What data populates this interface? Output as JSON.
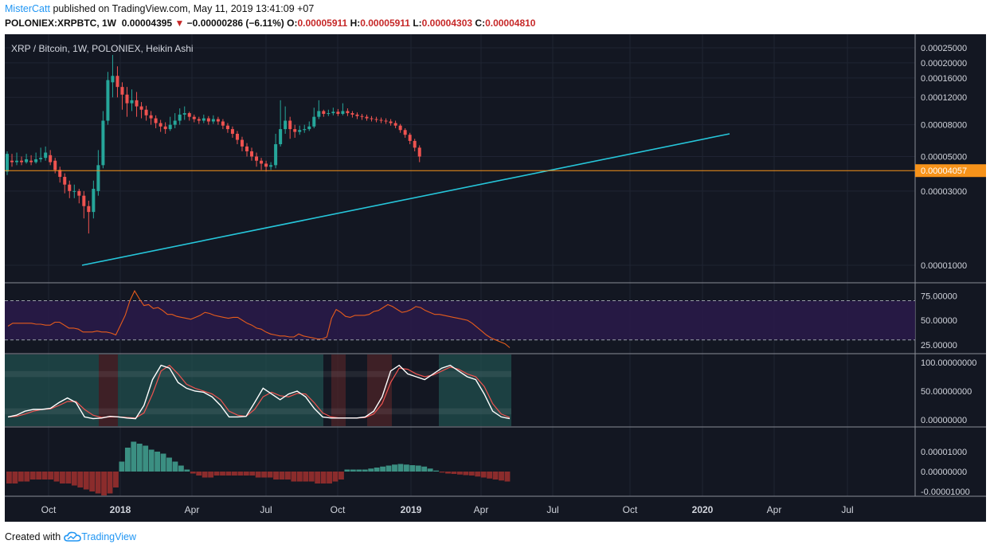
{
  "header": {
    "author": "MisterCatt",
    "published": "published on TradingView.com, May 11, 2019 13:41:09 +07",
    "symbol_line": "POLONIEX:XRPBTC, 1W",
    "last": "0.00004395",
    "change": "−0.00000286 (−6.11%)",
    "o_label": "O:",
    "o_val": "0.00005911",
    "h_label": "H:",
    "h_val": "0.00005911",
    "l_label": "L:",
    "l_val": "0.00004303",
    "c_label": "C:",
    "c_val": "0.00004810"
  },
  "footer": {
    "created_with": "Created with",
    "brand": "TradingView"
  },
  "colors": {
    "background": "#131722",
    "grid": "#1f2433",
    "up": "#26a69a",
    "down": "#ef5350",
    "trendline": "#26c6da",
    "support": "#f7931a",
    "rsi": "#e65c1c",
    "rsi_band": "#2a1a4a",
    "stoch_k": "#ffffff",
    "stoch_d": "#ef5350",
    "stoch_bg_low": "#1f4b4b",
    "stoch_bg_high": "#4a2328",
    "macd_up": "#3b8f82",
    "macd_down": "#8b2c2c"
  },
  "chart_data": {
    "type": "candlestick",
    "title": "XRP / Bitcoin, 1W, POLONIEX, Heikin Ashi",
    "x_ticks": [
      "Oct",
      "2018",
      "Apr",
      "Jul",
      "Oct",
      "2019",
      "Apr",
      "Jul",
      "Oct",
      "2020",
      "Apr",
      "Jul"
    ],
    "y_ticks": [
      "0.00025000",
      "0.00020000",
      "0.00016000",
      "0.00012000",
      "0.00008000",
      "0.00005000",
      "0.00003000",
      "0.00001000"
    ],
    "y_scale": "log",
    "price_line": "0.00004057",
    "candles": [
      [
        4e-05,
        5.2e-05,
        5.4e-05,
        3.8e-05
      ],
      [
        4.7e-05,
        4.6e-05,
        5.2e-05,
        4.3e-05
      ],
      [
        4.6e-05,
        4.7e-05,
        5.3e-05,
        4.4e-05
      ],
      [
        4.7e-05,
        4.6e-05,
        5e-05,
        4.4e-05
      ],
      [
        4.6e-05,
        4.8e-05,
        5.2e-05,
        4.5e-05
      ],
      [
        4.7e-05,
        4.6e-05,
        5.1e-05,
        4.4e-05
      ],
      [
        4.6e-05,
        4.8e-05,
        5.3e-05,
        4.5e-05
      ],
      [
        4.8e-05,
        4.9e-05,
        5.7e-05,
        4.6e-05
      ],
      [
        4.9e-05,
        5.3e-05,
        5.8e-05,
        4.7e-05
      ],
      [
        5.1e-05,
        4.6e-05,
        5.5e-05,
        4.4e-05
      ],
      [
        4.7e-05,
        4.1e-05,
        4.9e-05,
        3.9e-05
      ],
      [
        4.1e-05,
        3.7e-05,
        4.3e-05,
        3.4e-05
      ],
      [
        3.7e-05,
        3.3e-05,
        3.9e-05,
        2.9e-05
      ],
      [
        3.3e-05,
        3e-05,
        3.5e-05,
        2.7e-05
      ],
      [
        3e-05,
        3e-05,
        3.3e-05,
        2.7e-05
      ],
      [
        3e-05,
        2.8e-05,
        3.1e-05,
        2.5e-05
      ],
      [
        2.8e-05,
        2.4e-05,
        3e-05,
        2e-05
      ],
      [
        2.4e-05,
        2.2e-05,
        2.6e-05,
        1.6e-05
      ],
      [
        2.2e-05,
        3.1e-05,
        3.5e-05,
        2e-05
      ],
      [
        3e-05,
        4.4e-05,
        5.5e-05,
        2.8e-05
      ],
      [
        4.4e-05,
        8.5e-05,
        9.8e-05,
        4.2e-05
      ],
      [
        8.5e-05,
        0.000155,
        0.000175,
        8e-05
      ],
      [
        0.00015,
        0.000165,
        0.000225,
        0.00012
      ],
      [
        0.000165,
        0.00014,
        0.00019,
        0.00012
      ],
      [
        0.00014,
        0.000125,
        0.00015,
        0.0001
      ],
      [
        0.000125,
        0.00011,
        0.00014,
        9e-05
      ],
      [
        0.00011,
        0.000115,
        0.000135,
        9.8e-05
      ],
      [
        0.000115,
        0.000105,
        0.00013,
        9e-05
      ],
      [
        0.000105,
        0.0001,
        0.000112,
        8.8e-05
      ],
      [
        0.0001,
        9.2e-05,
        0.000106,
        8.5e-05
      ],
      [
        9.2e-05,
        8.8e-05,
        9.8e-05,
        8e-05
      ],
      [
        8.8e-05,
        8.2e-05,
        9.2e-05,
        7.6e-05
      ],
      [
        8.2e-05,
        7.8e-05,
        8.6e-05,
        7.2e-05
      ],
      [
        7.8e-05,
        7.5e-05,
        8.3e-05,
        7e-05
      ],
      [
        7.5e-05,
        8e-05,
        9e-05,
        7.3e-05
      ],
      [
        8e-05,
        8.5e-05,
        9.5e-05,
        7.6e-05
      ],
      [
        8.5e-05,
        9.3e-05,
        0.000102,
        8e-05
      ],
      [
        9.3e-05,
        9.5e-05,
        0.000105,
        8.6e-05
      ],
      [
        9.5e-05,
        9e-05,
        9.7e-05,
        8.5e-05
      ],
      [
        9e-05,
        8.7e-05,
        9.3e-05,
        8.3e-05
      ],
      [
        8.7e-05,
        8.5e-05,
        9e-05,
        8.1e-05
      ],
      [
        8.5e-05,
        8.8e-05,
        9.3e-05,
        8.2e-05
      ],
      [
        8.8e-05,
        8.4e-05,
        9.1e-05,
        8e-05
      ],
      [
        8.4e-05,
        8.7e-05,
        9.2e-05,
        8.1e-05
      ],
      [
        8.7e-05,
        8.4e-05,
        9e-05,
        8e-05
      ],
      [
        8.4e-05,
        7.9e-05,
        8.7e-05,
        7.5e-05
      ],
      [
        7.9e-05,
        7.5e-05,
        8.2e-05,
        7.1e-05
      ],
      [
        7.5e-05,
        7e-05,
        7.8e-05,
        6.6e-05
      ],
      [
        7e-05,
        6.4e-05,
        7.3e-05,
        6e-05
      ],
      [
        6.4e-05,
        5.8e-05,
        6.7e-05,
        5.4e-05
      ],
      [
        5.8e-05,
        5.4e-05,
        6.1e-05,
        5e-05
      ],
      [
        5.4e-05,
        5e-05,
        5.7e-05,
        4.7e-05
      ],
      [
        5e-05,
        4.7e-05,
        5.3e-05,
        4.3e-05
      ],
      [
        4.7e-05,
        4.5e-05,
        4.9e-05,
        4.1e-05
      ],
      [
        4.5e-05,
        4.3e-05,
        4.7e-05,
        4e-05
      ],
      [
        4.3e-05,
        4.4e-05,
        4.6e-05,
        4.1e-05
      ],
      [
        4.4e-05,
        6e-05,
        7e-05,
        4.2e-05
      ],
      [
        6e-05,
        7.5e-05,
        0.000115,
        5.8e-05
      ],
      [
        7.5e-05,
        8.5e-05,
        0.000105,
        7e-05
      ],
      [
        8.5e-05,
        7.5e-05,
        9e-05,
        6.5e-05
      ],
      [
        7.5e-05,
        7.2e-05,
        8e-05,
        6.6e-05
      ],
      [
        7.2e-05,
        7.4e-05,
        7.9e-05,
        6.9e-05
      ],
      [
        7.4e-05,
        7.5e-05,
        8e-05,
        7.1e-05
      ],
      [
        7.5e-05,
        7.8e-05,
        8.4e-05,
        7.3e-05
      ],
      [
        7.8e-05,
        9e-05,
        0.000103,
        7.6e-05
      ],
      [
        9e-05,
        9.8e-05,
        0.000115,
        8.7e-05
      ],
      [
        9.8e-05,
        9.4e-05,
        0.0001,
        9e-05
      ],
      [
        9.4e-05,
        9.5e-05,
        0.0001,
        9.1e-05
      ],
      [
        9.5e-05,
        9.7e-05,
        0.000103,
        9.2e-05
      ],
      [
        9.7e-05,
        9.4e-05,
        0.000101,
        9.1e-05
      ],
      [
        9.4e-05,
        9.8e-05,
        0.00011,
        9.2e-05
      ],
      [
        9.8e-05,
        9.5e-05,
        0.000102,
        9.1e-05
      ],
      [
        9.5e-05,
        9.3e-05,
        9.8e-05,
        8.9e-05
      ],
      [
        9.3e-05,
        9.1e-05,
        9.6e-05,
        8.7e-05
      ],
      [
        9.1e-05,
        9e-05,
        9.4e-05,
        8.6e-05
      ],
      [
        9e-05,
        8.8e-05,
        9.3e-05,
        8.5e-05
      ],
      [
        8.8e-05,
        8.7e-05,
        9.1e-05,
        8.4e-05
      ],
      [
        8.7e-05,
        8.6e-05,
        9e-05,
        8.3e-05
      ],
      [
        8.6e-05,
        8.5e-05,
        8.9e-05,
        8.2e-05
      ],
      [
        8.5e-05,
        8.4e-05,
        8.8e-05,
        8.1e-05
      ],
      [
        8.4e-05,
        8.2e-05,
        8.7e-05,
        7.9e-05
      ],
      [
        8.2e-05,
        7.9e-05,
        8.5e-05,
        7.6e-05
      ],
      [
        7.9e-05,
        7.4e-05,
        8.1e-05,
        7.1e-05
      ],
      [
        7.4e-05,
        6.9e-05,
        7.6e-05,
        6.6e-05
      ],
      [
        6.9e-05,
        6.3e-05,
        7.1e-05,
        6e-05
      ],
      [
        6.3e-05,
        5.7e-05,
        6.5e-05,
        5.4e-05
      ],
      [
        5.7e-05,
        5e-05,
        5.9e-05,
        4.6e-05
      ]
    ],
    "rsi": {
      "ticks": [
        "75.00000",
        "50.00000",
        "25.00000"
      ],
      "overbought": 70,
      "oversold": 30,
      "values": [
        44,
        47,
        47,
        47,
        47,
        47,
        46,
        46,
        45,
        45,
        48,
        48,
        45,
        42,
        42,
        41,
        38,
        38,
        38,
        39,
        38,
        38,
        37,
        35,
        45,
        55,
        70,
        80,
        72,
        65,
        66,
        62,
        63,
        60,
        56,
        56,
        54,
        53,
        52,
        51,
        53,
        55,
        58,
        57,
        55,
        54,
        53,
        52,
        53,
        53,
        50,
        47,
        45,
        42,
        41,
        38,
        36,
        35,
        34,
        34,
        33,
        33,
        36,
        34,
        33,
        32,
        31,
        31,
        33,
        52,
        61,
        58,
        54,
        53,
        55,
        55,
        55,
        56,
        59,
        60,
        63,
        66,
        64,
        61,
        58,
        59,
        61,
        64,
        63,
        60,
        58,
        56,
        56,
        55,
        54,
        53,
        52,
        51,
        50,
        47,
        43,
        39,
        35,
        32,
        30,
        28,
        26,
        22
      ]
    },
    "stoch": {
      "ticks": [
        "100.00000000",
        "50.00000000",
        "0.00000000"
      ],
      "k": [
        5,
        8,
        15,
        18,
        18,
        20,
        30,
        38,
        30,
        5,
        2,
        3,
        6,
        5,
        3,
        2,
        25,
        70,
        95,
        90,
        65,
        55,
        50,
        48,
        40,
        25,
        5,
        5,
        6,
        30,
        55,
        45,
        35,
        45,
        50,
        40,
        20,
        5,
        3,
        3,
        3,
        3,
        5,
        15,
        40,
        85,
        95,
        80,
        75,
        70,
        80,
        90,
        95,
        85,
        75,
        70,
        45,
        15,
        5,
        2
      ],
      "d": [
        5,
        6,
        10,
        15,
        18,
        19,
        25,
        32,
        32,
        18,
        8,
        4,
        5,
        5,
        4,
        3,
        12,
        45,
        85,
        95,
        80,
        62,
        55,
        50,
        45,
        35,
        15,
        8,
        6,
        18,
        40,
        48,
        42,
        40,
        46,
        45,
        30,
        12,
        5,
        3,
        3,
        3,
        4,
        10,
        28,
        65,
        90,
        88,
        80,
        75,
        78,
        85,
        92,
        88,
        80,
        75,
        58,
        28,
        10,
        4
      ]
    },
    "macd": {
      "ticks": [
        "0.00001000",
        "0.00000000",
        "-0.00001000"
      ],
      "values": [
        -0.6,
        -0.6,
        -0.5,
        -0.5,
        -0.4,
        -0.4,
        -0.4,
        -0.4,
        -0.5,
        -0.6,
        -0.6,
        -0.7,
        -0.8,
        -0.9,
        -1.0,
        -1.1,
        -1.2,
        -1.1,
        -0.8,
        0.5,
        1.2,
        1.5,
        1.4,
        1.3,
        1.1,
        1.0,
        0.9,
        0.7,
        0.5,
        0.3,
        0.1,
        -0.1,
        -0.2,
        -0.3,
        -0.3,
        -0.2,
        -0.2,
        -0.2,
        -0.2,
        -0.2,
        -0.2,
        -0.2,
        -0.3,
        -0.3,
        -0.3,
        -0.4,
        -0.4,
        -0.4,
        -0.5,
        -0.5,
        -0.5,
        -0.5,
        -0.6,
        -0.6,
        -0.6,
        -0.5,
        -0.4,
        0.1,
        0.1,
        0.1,
        0.1,
        0.15,
        0.2,
        0.25,
        0.3,
        0.35,
        0.38,
        0.35,
        0.32,
        0.3,
        0.25,
        0.15,
        0.05,
        -0.05,
        -0.1,
        -0.12,
        -0.15,
        -0.18,
        -0.2,
        -0.25,
        -0.3,
        -0.35,
        -0.4,
        -0.45,
        -0.5
      ]
    }
  }
}
